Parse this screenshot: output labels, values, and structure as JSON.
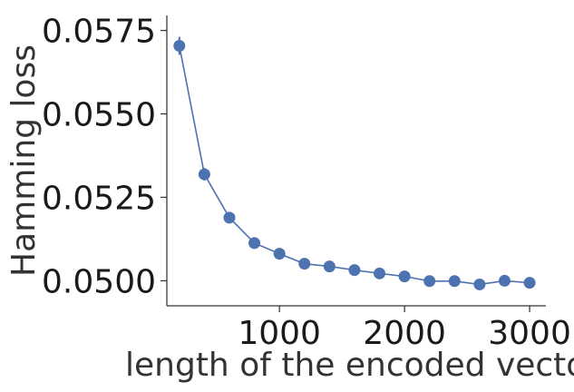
{
  "chart_data": {
    "type": "line",
    "title": "",
    "xlabel": "length of the encoded vecto",
    "ylabel": "Hamming loss",
    "xlim": [
      100,
      3130
    ],
    "ylim": [
      0.04925,
      0.05795
    ],
    "xticks": [
      1000,
      2000,
      3000
    ],
    "xtick_labels": [
      "1000",
      "2000",
      "3000"
    ],
    "yticks": [
      0.05,
      0.0525,
      0.055,
      0.0575
    ],
    "ytick_labels": [
      "0.0500",
      "0.0525",
      "0.0550",
      "0.0575"
    ],
    "grid": false,
    "color": "#4c72b0",
    "series": [
      {
        "x": [
          200,
          400,
          600,
          800,
          1000,
          1200,
          1400,
          1600,
          1800,
          2000,
          2200,
          2400,
          2600,
          2800,
          3000
        ],
        "y": [
          0.05704,
          0.05319,
          0.05189,
          0.05113,
          0.05081,
          0.05051,
          0.05043,
          0.05032,
          0.05022,
          0.05013,
          0.04999,
          0.04999,
          0.04989,
          0.05,
          0.04994
        ],
        "err": [
          0.00027,
          0.00019,
          0.00013,
          0.00015,
          0.00015,
          0.00011,
          0.0001,
          0.0001,
          0.0001,
          9e-05,
          9e-05,
          8e-05,
          9e-05,
          9e-05,
          8e-05
        ]
      }
    ]
  }
}
